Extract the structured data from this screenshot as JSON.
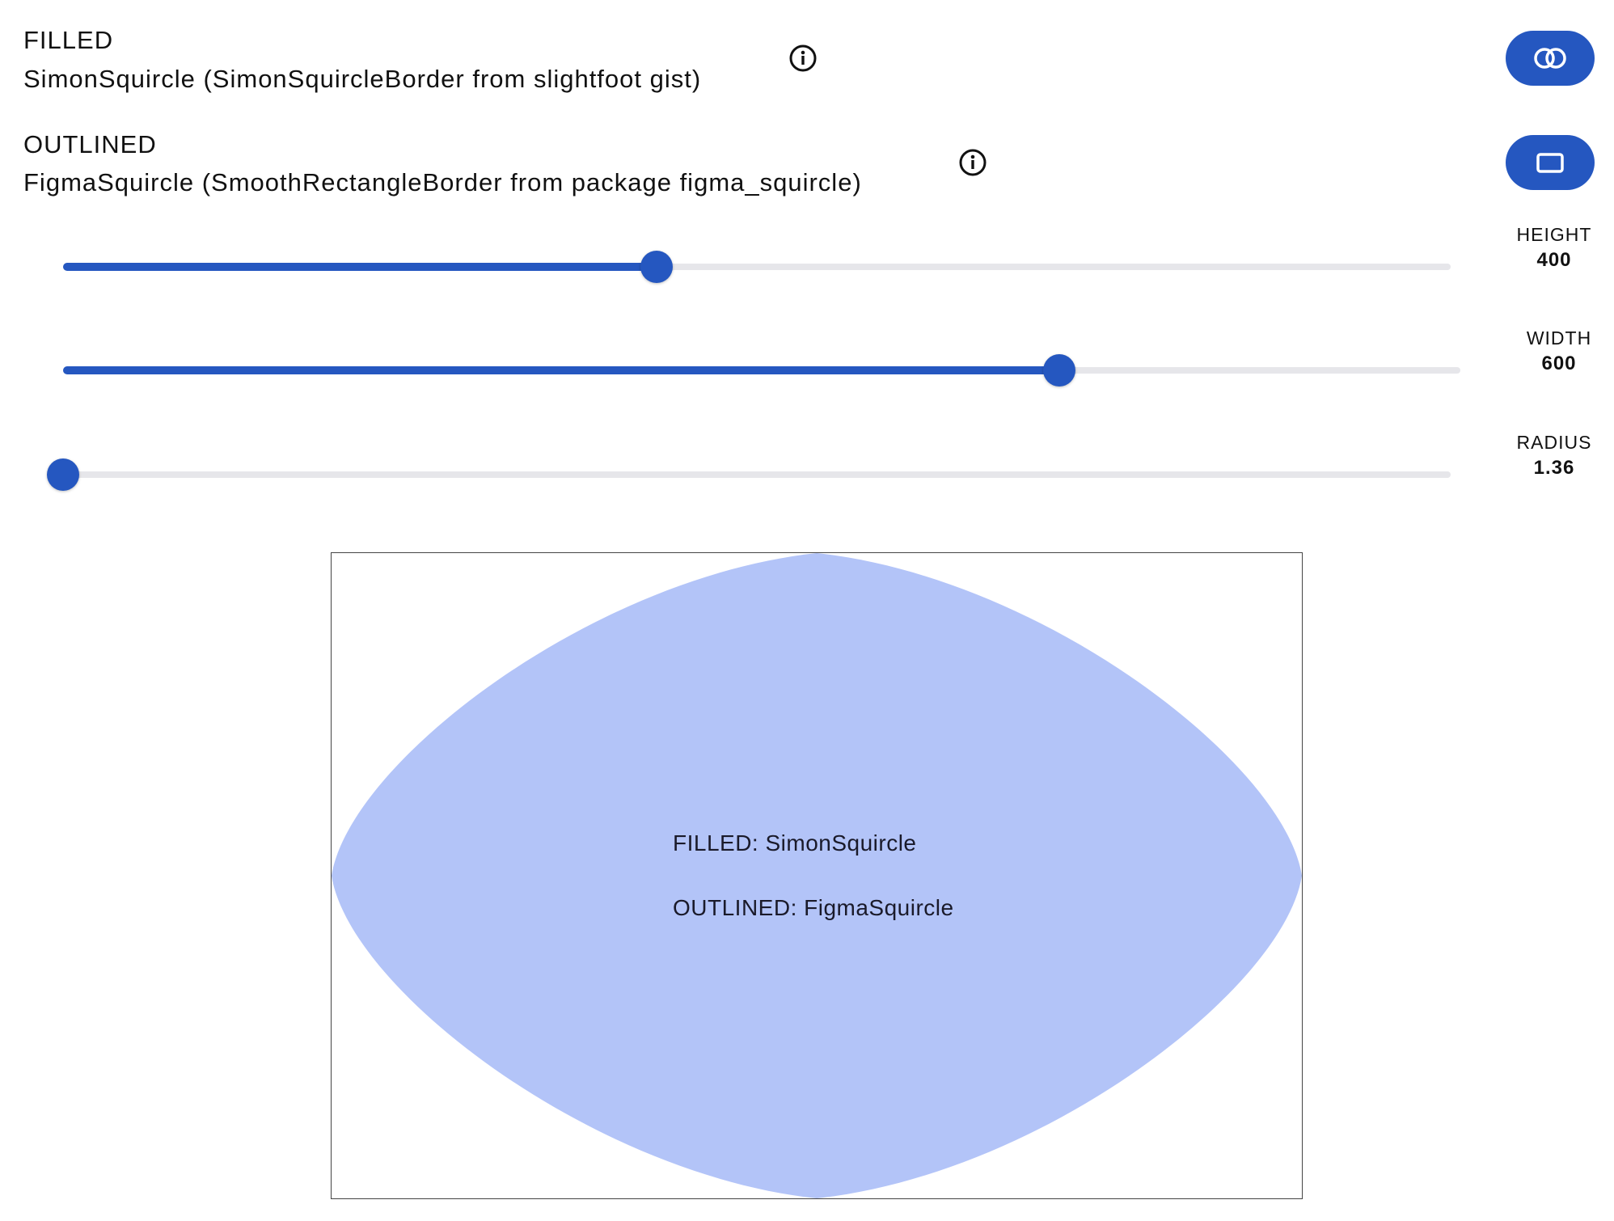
{
  "rows": [
    {
      "mode": "FILLED",
      "description": "SimonSquircle (SimonSquircleBorder from slightfoot gist)",
      "info_icon": "info-icon",
      "button_icon": "overlapping-circles-icon"
    },
    {
      "mode": "OUTLINED",
      "description": "FigmaSquircle (SmoothRectangleBorder from package figma_squircle)",
      "info_icon": "info-icon",
      "button_icon": "rectangle-outline-icon"
    }
  ],
  "sliders": {
    "height": {
      "label": "HEIGHT",
      "value": "400",
      "fraction": 0.428
    },
    "width": {
      "label": "WIDTH",
      "value": "600",
      "fraction": 0.713
    },
    "radius": {
      "label": "RADIUS",
      "value": "1.36",
      "fraction": 0.0
    }
  },
  "preview": {
    "line1": "FILLED: SimonSquircle",
    "line2": "OUTLINED: FigmaSquircle"
  },
  "colors": {
    "accent": "#2557c0",
    "track": "#e6e6ea",
    "shape_fill": "#b3c4f8",
    "frame_border": "#444444"
  }
}
